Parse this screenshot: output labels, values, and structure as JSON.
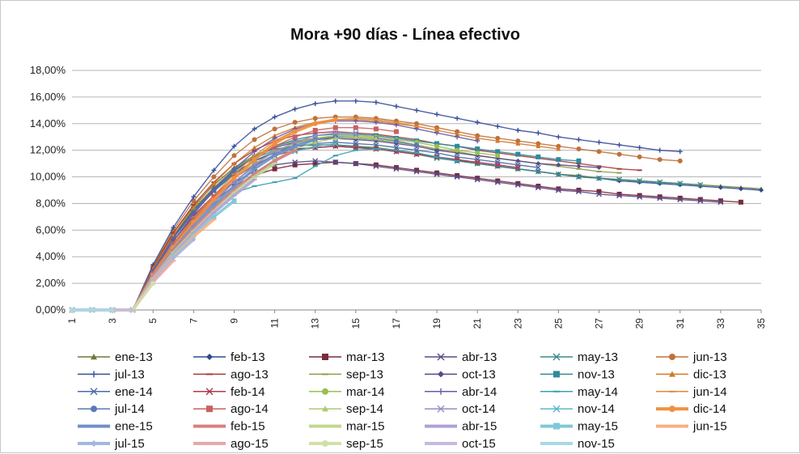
{
  "chart_data": {
    "type": "line",
    "title": "Mora +90 días - Línea efectivo",
    "xlabel": "",
    "ylabel": "",
    "ylim": [
      0,
      18
    ],
    "xlim": [
      1,
      35
    ],
    "y_ticks": [
      "0,00%",
      "2,00%",
      "4,00%",
      "6,00%",
      "8,00%",
      "10,00%",
      "12,00%",
      "14,00%",
      "16,00%",
      "18,00%"
    ],
    "x_ticks": [
      "1",
      "3",
      "5",
      "7",
      "9",
      "11",
      "13",
      "15",
      "17",
      "19",
      "21",
      "23",
      "25",
      "27",
      "29",
      "31",
      "33",
      "35"
    ],
    "grid": "horizontal",
    "legend_position": "bottom",
    "series": [
      {
        "name": "ene-13",
        "color": "#6b7a3a",
        "marker": "triangle",
        "values": [
          0,
          0,
          0,
          0,
          3.2,
          5.8,
          7.8,
          9.4,
          10.7,
          11.6,
          12.1,
          12.3,
          12.4,
          12.4,
          12.3,
          12.2,
          12.0,
          11.8,
          11.5,
          11.3,
          11.0,
          10.8,
          10.6,
          10.4,
          10.2,
          10.1,
          9.9,
          9.8,
          9.7,
          9.6,
          9.5,
          9.4,
          9.3,
          9.2,
          9.1
        ]
      },
      {
        "name": "feb-13",
        "color": "#2f4b8f",
        "marker": "diamond",
        "values": [
          0,
          0,
          0,
          0,
          3.0,
          5.5,
          7.4,
          9.0,
          10.3,
          11.2,
          11.8,
          12.1,
          12.2,
          12.3,
          12.2,
          12.1,
          11.9,
          11.7,
          11.5,
          11.2,
          11.0,
          10.8,
          10.6,
          10.4,
          10.2,
          10.0,
          9.9,
          9.7,
          9.6,
          9.5,
          9.4,
          9.3,
          9.2,
          9.1,
          9.0
        ]
      },
      {
        "name": "mar-13",
        "color": "#7a2b3a",
        "marker": "square",
        "values": [
          0,
          0,
          0,
          0,
          2.8,
          5.0,
          6.8,
          8.2,
          9.3,
          10.1,
          10.6,
          10.9,
          11.0,
          11.1,
          11.0,
          10.9,
          10.7,
          10.5,
          10.3,
          10.1,
          9.9,
          9.7,
          9.5,
          9.3,
          9.1,
          9.0,
          8.9,
          8.7,
          8.6,
          8.5,
          8.4,
          8.3,
          8.2,
          8.1
        ]
      },
      {
        "name": "abr-13",
        "color": "#5b4a86",
        "marker": "x",
        "values": [
          0,
          0,
          0,
          0,
          2.9,
          5.2,
          7.0,
          8.5,
          9.6,
          10.4,
          10.9,
          11.1,
          11.2,
          11.1,
          11.0,
          10.8,
          10.6,
          10.4,
          10.2,
          10.0,
          9.8,
          9.6,
          9.4,
          9.2,
          9.0,
          8.9,
          8.7,
          8.6,
          8.5,
          8.4,
          8.3,
          8.2,
          8.1
        ]
      },
      {
        "name": "may-13",
        "color": "#3e8a8a",
        "marker": "x",
        "values": [
          0,
          0,
          0,
          0,
          3.1,
          5.6,
          7.6,
          9.2,
          10.5,
          11.4,
          12.0,
          12.3,
          12.4,
          12.4,
          12.3,
          12.1,
          11.9,
          11.7,
          11.4,
          11.2,
          11.0,
          10.8,
          10.6,
          10.4,
          10.2,
          10.0,
          9.9,
          9.8,
          9.7,
          9.6,
          9.5,
          9.4
        ]
      },
      {
        "name": "jun-13",
        "color": "#c0713a",
        "marker": "circle",
        "values": [
          0,
          0,
          0,
          0,
          3.3,
          6.0,
          8.2,
          10.0,
          11.6,
          12.8,
          13.6,
          14.1,
          14.4,
          14.5,
          14.5,
          14.4,
          14.2,
          14.0,
          13.7,
          13.4,
          13.1,
          12.9,
          12.7,
          12.5,
          12.3,
          12.1,
          11.9,
          11.7,
          11.5,
          11.3,
          11.2
        ]
      },
      {
        "name": "jul-13",
        "color": "#3a4f9a",
        "marker": "plus",
        "values": [
          0,
          0,
          0,
          0,
          3.4,
          6.2,
          8.5,
          10.5,
          12.3,
          13.6,
          14.5,
          15.1,
          15.5,
          15.7,
          15.7,
          15.6,
          15.3,
          15.0,
          14.7,
          14.4,
          14.1,
          13.8,
          13.5,
          13.3,
          13.0,
          12.8,
          12.6,
          12.4,
          12.2,
          12.0,
          11.9
        ]
      },
      {
        "name": "ago-13",
        "color": "#a63a3a",
        "marker": "dash",
        "values": [
          0,
          0,
          0,
          0,
          3.2,
          5.8,
          7.9,
          9.6,
          11.0,
          12.0,
          12.7,
          13.1,
          13.3,
          13.4,
          13.3,
          13.2,
          13.0,
          12.8,
          12.5,
          12.3,
          12.0,
          11.8,
          11.6,
          11.4,
          11.2,
          11.0,
          10.8,
          10.6,
          10.5
        ]
      },
      {
        "name": "sep-13",
        "color": "#8aa04a",
        "marker": "dash",
        "values": [
          0,
          0,
          0,
          0,
          3.1,
          5.6,
          7.6,
          9.2,
          10.6,
          11.6,
          12.3,
          12.7,
          12.9,
          13.0,
          12.9,
          12.8,
          12.6,
          12.4,
          12.1,
          11.9,
          11.6,
          11.4,
          11.2,
          11.0,
          10.8,
          10.6,
          10.4,
          10.3
        ]
      },
      {
        "name": "oct-13",
        "color": "#5b4a86",
        "marker": "diamond",
        "values": [
          0,
          0,
          0,
          0,
          3.0,
          5.5,
          7.5,
          9.1,
          10.5,
          11.5,
          12.2,
          12.6,
          12.8,
          12.9,
          12.8,
          12.7,
          12.5,
          12.3,
          12.0,
          11.8,
          11.6,
          11.4,
          11.2,
          11.0,
          10.9,
          10.8,
          10.7
        ]
      },
      {
        "name": "nov-13",
        "color": "#2f8a9a",
        "marker": "square",
        "values": [
          0,
          0,
          0,
          0,
          3.0,
          5.4,
          7.4,
          9.0,
          10.4,
          11.5,
          12.3,
          12.8,
          13.1,
          13.2,
          13.2,
          13.1,
          12.9,
          12.7,
          12.5,
          12.3,
          12.1,
          11.9,
          11.7,
          11.5,
          11.3,
          11.2
        ]
      },
      {
        "name": "dic-13",
        "color": "#d07a2a",
        "marker": "triangle",
        "values": [
          0,
          0,
          0,
          0,
          3.1,
          5.6,
          7.7,
          9.5,
          11.0,
          12.2,
          13.1,
          13.7,
          14.1,
          14.3,
          14.3,
          14.2,
          14.0,
          13.8,
          13.5,
          13.2,
          12.9,
          12.7,
          12.5,
          12.3,
          12.1
        ]
      },
      {
        "name": "ene-14",
        "color": "#4a6aa8",
        "marker": "x",
        "values": [
          0,
          0,
          0,
          0,
          3.0,
          5.4,
          7.3,
          8.9,
          10.2,
          11.2,
          11.9,
          12.3,
          12.5,
          12.6,
          12.5,
          12.4,
          12.2,
          12.0,
          11.8,
          11.5,
          11.3,
          11.1,
          10.9,
          10.7
        ]
      },
      {
        "name": "feb-14",
        "color": "#b03a4a",
        "marker": "x",
        "values": [
          0,
          0,
          0,
          0,
          2.9,
          5.2,
          7.1,
          8.6,
          9.9,
          10.9,
          11.6,
          12.0,
          12.2,
          12.3,
          12.2,
          12.1,
          11.9,
          11.7,
          11.5,
          11.3,
          11.1,
          10.9,
          10.7
        ]
      },
      {
        "name": "mar-14",
        "color": "#9ac050",
        "marker": "circle",
        "values": [
          0,
          0,
          0,
          0,
          2.8,
          5.0,
          6.9,
          8.5,
          9.9,
          11.0,
          11.9,
          12.5,
          12.9,
          13.1,
          13.1,
          13.0,
          12.8,
          12.6,
          12.3,
          12.0,
          11.8,
          11.6
        ]
      },
      {
        "name": "abr-14",
        "color": "#6a5aa8",
        "marker": "plus",
        "values": [
          0,
          0,
          0,
          0,
          2.9,
          5.2,
          7.2,
          9.0,
          10.6,
          11.9,
          12.9,
          13.6,
          14.0,
          14.2,
          14.2,
          14.1,
          13.9,
          13.6,
          13.3,
          13.0,
          12.7
        ]
      },
      {
        "name": "may-14",
        "color": "#3aa0b0",
        "marker": "dash",
        "values": [
          0,
          0,
          0,
          0,
          2.7,
          4.8,
          6.6,
          8.0,
          8.8,
          9.3,
          9.6,
          9.9,
          10.8,
          11.6,
          12.0,
          12.1,
          12.0,
          11.8,
          11.5,
          11.2
        ]
      },
      {
        "name": "jun-14",
        "color": "#e08a3a",
        "marker": "dash",
        "values": [
          0,
          0,
          0,
          0,
          2.8,
          5.0,
          6.9,
          8.6,
          10.2,
          11.6,
          12.7,
          13.5,
          14.0,
          14.3,
          14.4,
          14.3,
          14.1,
          13.8,
          13.5
        ]
      },
      {
        "name": "jul-14",
        "color": "#5a7ab8",
        "marker": "circle",
        "values": [
          0,
          0,
          0,
          0,
          2.7,
          4.8,
          6.6,
          8.2,
          9.6,
          10.8,
          11.7,
          12.4,
          12.8,
          13.0,
          13.0,
          12.9,
          12.7,
          12.4
        ]
      },
      {
        "name": "ago-14",
        "color": "#c86060",
        "marker": "square",
        "values": [
          0,
          0,
          0,
          0,
          2.7,
          4.9,
          6.8,
          8.5,
          10.0,
          11.3,
          12.3,
          13.0,
          13.5,
          13.7,
          13.7,
          13.6,
          13.4
        ]
      },
      {
        "name": "sep-14",
        "color": "#b0c870",
        "marker": "triangle",
        "values": [
          0,
          0,
          0,
          0,
          2.6,
          4.6,
          6.3,
          7.8,
          9.1,
          10.3,
          11.3,
          12.1,
          12.6,
          12.9,
          13.0,
          12.9
        ]
      },
      {
        "name": "oct-14",
        "color": "#9a8ac8",
        "marker": "x",
        "values": [
          0,
          0,
          0,
          0,
          2.6,
          4.7,
          6.5,
          8.1,
          9.6,
          10.9,
          11.9,
          12.6,
          13.1,
          13.3,
          13.3
        ]
      },
      {
        "name": "nov-14",
        "color": "#5ab8c8",
        "marker": "x",
        "values": [
          0,
          0,
          0,
          0,
          2.5,
          4.5,
          6.2,
          7.7,
          9.1,
          10.3,
          11.2,
          11.9,
          12.3,
          12.5
        ]
      },
      {
        "name": "dic-14",
        "color": "#f09040",
        "marker": "circle",
        "values": [
          0,
          0,
          0,
          0,
          2.6,
          4.7,
          6.6,
          8.3,
          9.9,
          11.3,
          12.5,
          13.4,
          14.0,
          14.3
        ]
      },
      {
        "name": "ene-15",
        "color": "#7090c8",
        "marker": "dash",
        "values": [
          0,
          0,
          0,
          0,
          2.5,
          4.5,
          6.3,
          7.9,
          9.3,
          10.6,
          11.6,
          12.3,
          12.8
        ]
      },
      {
        "name": "feb-15",
        "color": "#d88080",
        "marker": "dash",
        "values": [
          0,
          0,
          0,
          0,
          2.5,
          4.4,
          6.1,
          7.6,
          9.0,
          10.2,
          11.2,
          12.0
        ]
      },
      {
        "name": "mar-15",
        "color": "#c0d890",
        "marker": "dash",
        "values": [
          0,
          0,
          0,
          0,
          2.4,
          4.3,
          5.9,
          7.4,
          8.8,
          10.0,
          11.0
        ]
      },
      {
        "name": "abr-15",
        "color": "#b0a0d8",
        "marker": "dash",
        "values": [
          0,
          0,
          0,
          0,
          2.4,
          4.2,
          5.8,
          7.3,
          8.6,
          9.8
        ]
      },
      {
        "name": "may-15",
        "color": "#80c8d8",
        "marker": "square",
        "values": [
          0,
          0,
          0,
          0,
          2.3,
          4.1,
          5.6,
          7.0,
          8.2
        ]
      },
      {
        "name": "jun-15",
        "color": "#f8b080",
        "marker": "dash",
        "values": [
          0,
          0,
          0,
          0,
          2.3,
          4.0,
          5.5,
          6.8
        ]
      },
      {
        "name": "jul-15",
        "color": "#a0b8e0",
        "marker": "diamond",
        "values": [
          0,
          0,
          0,
          0,
          2.2,
          3.9,
          5.3
        ]
      },
      {
        "name": "ago-15",
        "color": "#e8a8a8",
        "marker": "dash",
        "values": [
          0,
          0,
          0,
          0,
          2.1,
          3.7
        ]
      },
      {
        "name": "sep-15",
        "color": "#d0e0a8",
        "marker": "circle",
        "values": [
          0,
          0,
          0,
          0,
          2.0
        ]
      },
      {
        "name": "oct-15",
        "color": "#c8b8e0",
        "marker": "dash",
        "values": [
          0,
          0,
          0,
          0
        ]
      },
      {
        "name": "nov-15",
        "color": "#a8d8e8",
        "marker": "dash",
        "values": [
          0,
          0,
          0
        ]
      }
    ]
  }
}
